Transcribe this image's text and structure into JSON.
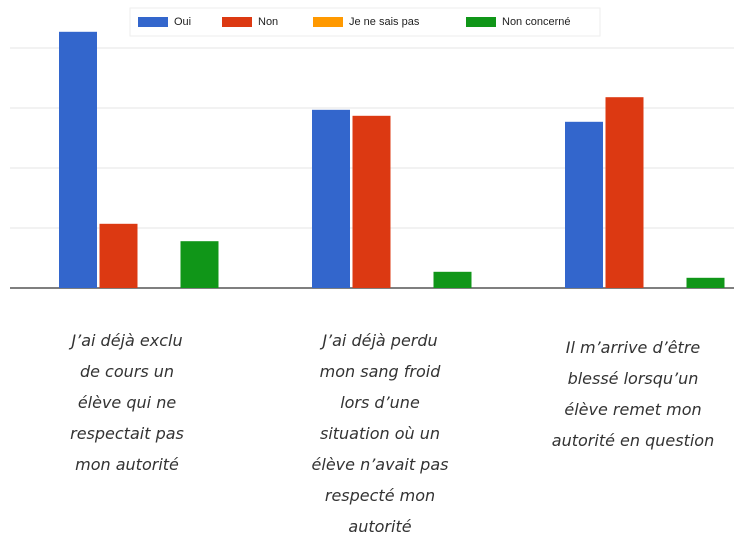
{
  "chart_data": {
    "type": "bar",
    "categories": [
      "J’ai déjà exclu\nde cours un\nélève qui ne\nrespectait pas\nmon autorité",
      "J’ai déjà perdu\nmon sang froid\nlors d’une\nsituation où un\nélève n’avait pas\nrespecté mon\nautorité",
      "Il m’arrive d’être\nblessé lorsqu’un\nélève remet mon\nautorité en question"
    ],
    "series": [
      {
        "name": "Oui",
        "color": "#3366cc",
        "values": [
          4.27,
          2.97,
          2.77
        ]
      },
      {
        "name": "Non",
        "color": "#dc3912",
        "values": [
          1.07,
          2.87,
          3.18
        ]
      },
      {
        "name": "Je ne sais pas",
        "color": "#ff9900",
        "values": [
          0,
          0,
          0
        ]
      },
      {
        "name": "Non concerné",
        "color": "#109618",
        "values": [
          0.78,
          0.27,
          0.17
        ]
      }
    ],
    "ylim": [
      0,
      4.5
    ],
    "yticks": [
      0,
      1,
      2,
      3,
      4
    ],
    "grid": true,
    "legend": "top"
  }
}
